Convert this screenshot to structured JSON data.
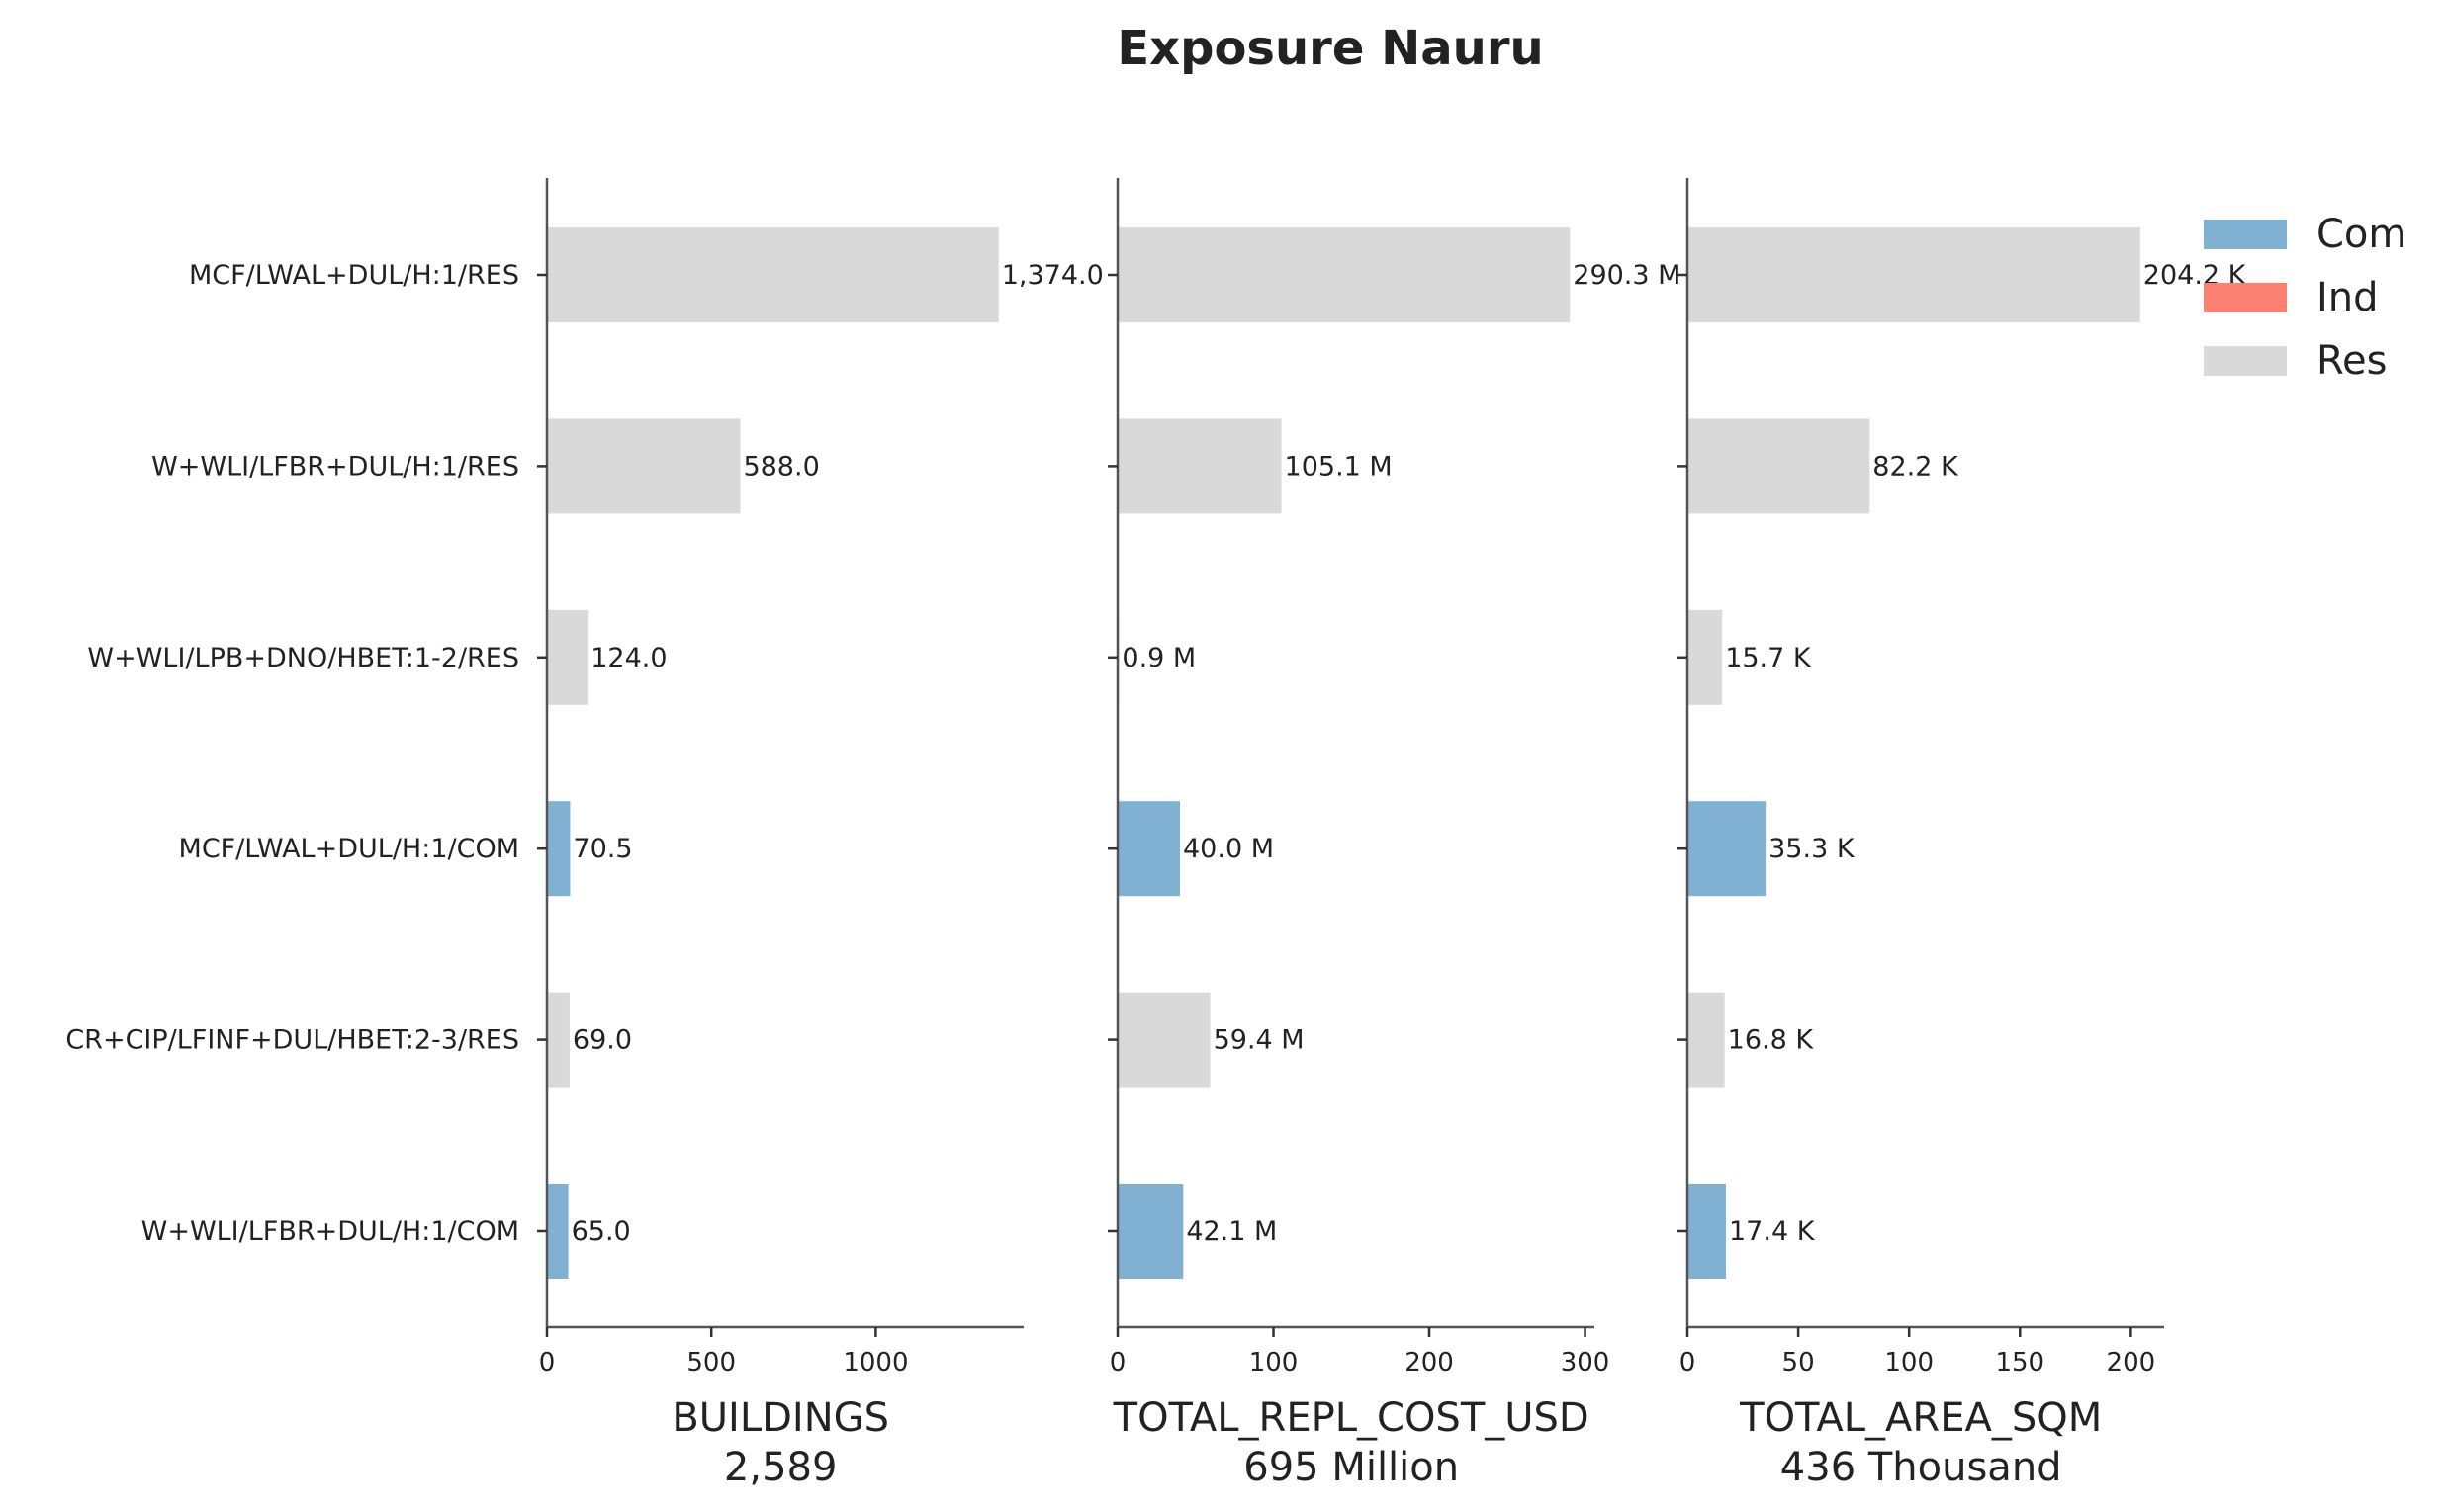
{
  "chart_data": {
    "type": "bar",
    "orientation": "horizontal",
    "title": "Exposure Nauru",
    "categories": [
      "MCF/LWAL+DUL/H:1/RES",
      "W+WLI/LFBR+DUL/H:1/RES",
      "W+WLI/LPB+DNO/HBET:1-2/RES",
      "MCF/LWAL+DUL/H:1/COM",
      "CR+CIP/LFINF+DUL/HBET:2-3/RES",
      "W+WLI/LFBR+DUL/H:1/COM"
    ],
    "occupancy": [
      "Res",
      "Res",
      "Res",
      "Com",
      "Res",
      "Com"
    ],
    "legend": {
      "placement": "top-right",
      "entries": [
        {
          "name": "Com",
          "color": "#80b1d3"
        },
        {
          "name": "Ind",
          "color": "#fb8072"
        },
        {
          "name": "Res",
          "color": "#d9d9d9"
        }
      ]
    },
    "panels": [
      {
        "xlabel": "BUILDINGS",
        "total": "2,589",
        "xlim": [
          0,
          1450
        ],
        "ticks": [
          0,
          500,
          1000
        ],
        "tick_labels": [
          "0",
          "500",
          "1000"
        ],
        "values": [
          1374.0,
          588.0,
          124.0,
          70.5,
          69.0,
          65.0
        ],
        "value_labels": [
          "1,374.0",
          "588.0",
          "124.0",
          "70.5",
          "69.0",
          "65.0"
        ]
      },
      {
        "xlabel": "TOTAL_REPL_COST_USD",
        "total": "695 Million",
        "xlim": [
          0,
          306
        ],
        "ticks": [
          0,
          100,
          200,
          300
        ],
        "tick_labels": [
          "0",
          "100",
          "200",
          "300"
        ],
        "values": [
          290.3,
          105.1,
          0.9,
          40.0,
          59.4,
          42.1
        ],
        "value_labels": [
          "290.3 M",
          "105.1 M",
          "0.9 M",
          "40.0 M",
          "59.4 M",
          "42.1 M"
        ]
      },
      {
        "xlabel": "TOTAL_AREA_SQM",
        "total": "436 Thousand",
        "xlim": [
          0,
          215
        ],
        "ticks": [
          0,
          50,
          100,
          150,
          200
        ],
        "tick_labels": [
          "0",
          "50",
          "100",
          "150",
          "200"
        ],
        "values": [
          204.2,
          82.2,
          15.7,
          35.3,
          16.8,
          17.4
        ],
        "value_labels": [
          "204.2 K",
          "82.2 K",
          "15.7 K",
          "35.3 K",
          "16.8 K",
          "17.4 K"
        ]
      }
    ]
  }
}
